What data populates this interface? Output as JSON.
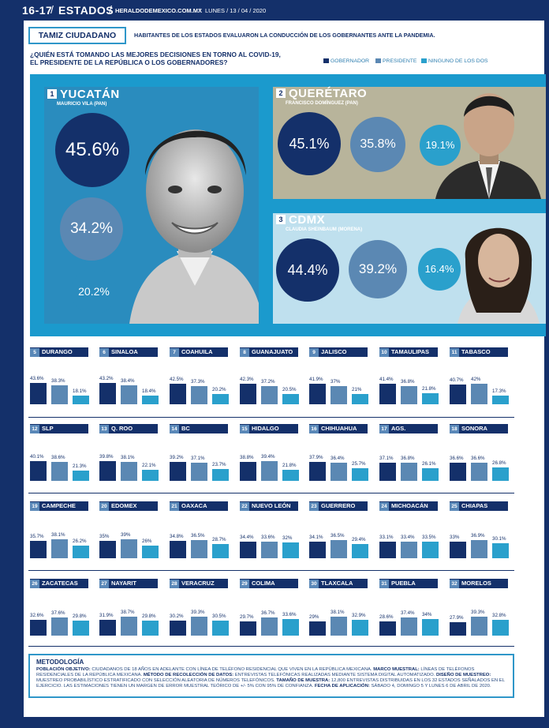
{
  "header": {
    "pages": "16-17",
    "section": "ESTADOS",
    "site": "HERALDODEMEXICO.COM.MX",
    "date": "LUNES / 13 / 04 / 2020"
  },
  "tamiz": {
    "label": "TAMIZ CIUDADANO",
    "subtitle": "HABITANTES DE LOS ESTADOS EVALUARON LA CONDUCCIÓN DE LOS GOBERNANTES ANTE LA PANDEMIA."
  },
  "question": {
    "line1": "¿QUIÉN ESTÁ TOMANDO LAS MEJORES DECISIONES EN TORNO AL COVID-19,",
    "line2": "EL PRESIDENTE DE LA REPÚBLICA O LOS GOBERNADORES?"
  },
  "legend": {
    "gobernador": "GOBERNADOR",
    "presidente": "PRESIDENTE",
    "ninguno": "NINGUNO DE LOS DOS"
  },
  "colors": {
    "gobernador": "#14306a",
    "presidente": "#5b88b3",
    "ninguno": "#2aa0cc",
    "band": "#1b9acd"
  },
  "featured": [
    {
      "rank": "1",
      "state": "YUCATÁN",
      "governor": "MAURICIO VILA (PAN)",
      "values": [
        "45.6%",
        "34.2%",
        "20.2%"
      ]
    },
    {
      "rank": "2",
      "state": "QUERÉTARO",
      "governor": "FRANCISCO DOMÍNGUEZ (PAN)",
      "values": [
        "45.1%",
        "35.8%",
        "19.1%"
      ]
    },
    {
      "rank": "3",
      "state": "CDMX",
      "governor": "CLAUDIA SHEINBAUM (MORENA)",
      "values": [
        "44.4%",
        "39.2%",
        "16.4%"
      ]
    }
  ],
  "states": [
    {
      "rank": "5",
      "name": "DURANGO",
      "labels": [
        "43.6%",
        "38.3%",
        "18.1%"
      ],
      "values": [
        43.6,
        38.3,
        18.1
      ]
    },
    {
      "rank": "6",
      "name": "SINALOA",
      "labels": [
        "43.2%",
        "38.4%",
        "18.4%"
      ],
      "values": [
        43.2,
        38.4,
        18.4
      ]
    },
    {
      "rank": "7",
      "name": "COAHUILA",
      "labels": [
        "42.5%",
        "37.3%",
        "20.2%"
      ],
      "values": [
        42.5,
        37.3,
        20.2
      ]
    },
    {
      "rank": "8",
      "name": "GUANAJUATO",
      "labels": [
        "42.3%",
        "37.2%",
        "20.5%"
      ],
      "values": [
        42.3,
        37.2,
        20.5
      ]
    },
    {
      "rank": "9",
      "name": "JALISCO",
      "labels": [
        "41.9%",
        "37%",
        "21%"
      ],
      "values": [
        41.9,
        37,
        21
      ]
    },
    {
      "rank": "10",
      "name": "TAMAULIPAS",
      "labels": [
        "41.4%",
        "36.8%",
        "21.8%"
      ],
      "values": [
        41.4,
        36.8,
        21.8
      ]
    },
    {
      "rank": "11",
      "name": "TABASCO",
      "labels": [
        "40.7%",
        "42%",
        "17.3%"
      ],
      "values": [
        40.7,
        42,
        17.3
      ]
    },
    {
      "rank": "12",
      "name": "SLP",
      "labels": [
        "40.1%",
        "38.6%",
        "21.3%"
      ],
      "values": [
        40.1,
        38.6,
        21.3
      ]
    },
    {
      "rank": "13",
      "name": "Q. ROO",
      "labels": [
        "39.8%",
        "38.1%",
        "22.1%"
      ],
      "values": [
        39.8,
        38.1,
        22.1
      ]
    },
    {
      "rank": "14",
      "name": "BC",
      "labels": [
        "39.2%",
        "37.1%",
        "23.7%"
      ],
      "values": [
        39.2,
        37.1,
        23.7
      ]
    },
    {
      "rank": "15",
      "name": "HIDALGO",
      "labels": [
        "38.8%",
        "39.4%",
        "21.8%"
      ],
      "values": [
        38.8,
        39.4,
        21.8
      ]
    },
    {
      "rank": "16",
      "name": "CHIHUAHUA",
      "labels": [
        "37.9%",
        "36.4%",
        "25.7%"
      ],
      "values": [
        37.9,
        36.4,
        25.7
      ]
    },
    {
      "rank": "17",
      "name": "AGS.",
      "labels": [
        "37.1%",
        "36.8%",
        "26.1%"
      ],
      "values": [
        37.1,
        36.8,
        26.1
      ]
    },
    {
      "rank": "18",
      "name": "SONORA",
      "labels": [
        "36.6%",
        "36.6%",
        "26.8%"
      ],
      "values": [
        36.6,
        36.6,
        26.8
      ]
    },
    {
      "rank": "19",
      "name": "CAMPECHE",
      "labels": [
        "35.7%",
        "38.1%",
        "26.2%"
      ],
      "values": [
        35.7,
        38.1,
        26.2
      ]
    },
    {
      "rank": "20",
      "name": "EDOMEX",
      "labels": [
        "35%",
        "39%",
        "26%"
      ],
      "values": [
        35,
        39,
        26
      ]
    },
    {
      "rank": "21",
      "name": "OAXACA",
      "labels": [
        "34.8%",
        "36.5%",
        "28.7%"
      ],
      "values": [
        34.8,
        36.5,
        28.7
      ]
    },
    {
      "rank": "22",
      "name": "NUEVO LEÓN",
      "labels": [
        "34.4%",
        "33.6%",
        "32%"
      ],
      "values": [
        34.4,
        33.6,
        32
      ]
    },
    {
      "rank": "23",
      "name": "GUERRERO",
      "labels": [
        "34.1%",
        "36.5%",
        "29.4%"
      ],
      "values": [
        34.1,
        36.5,
        29.4
      ]
    },
    {
      "rank": "24",
      "name": "MICHOACÁN",
      "labels": [
        "33.1%",
        "33.4%",
        "33.5%"
      ],
      "values": [
        33.1,
        33.4,
        33.5
      ]
    },
    {
      "rank": "25",
      "name": "CHIAPAS",
      "labels": [
        "33%",
        "36.9%",
        "30.1%"
      ],
      "values": [
        33,
        36.9,
        30.1
      ]
    },
    {
      "rank": "26",
      "name": "ZACATECAS",
      "labels": [
        "32.6%",
        "37.6%",
        "29.8%"
      ],
      "values": [
        32.6,
        37.6,
        29.8
      ]
    },
    {
      "rank": "27",
      "name": "NAYARIT",
      "labels": [
        "31.9%",
        "38.7%",
        "29.8%"
      ],
      "values": [
        31.9,
        38.7,
        29.8
      ]
    },
    {
      "rank": "28",
      "name": "VERACRUZ",
      "labels": [
        "30.2%",
        "39.3%",
        "30.5%"
      ],
      "values": [
        30.2,
        39.3,
        30.5
      ]
    },
    {
      "rank": "29",
      "name": "COLIMA",
      "labels": [
        "29.7%",
        "36.7%",
        "33.6%"
      ],
      "values": [
        29.7,
        36.7,
        33.6
      ]
    },
    {
      "rank": "30",
      "name": "TLAXCALA",
      "labels": [
        "29%",
        "38.1%",
        "32.9%"
      ],
      "values": [
        29,
        38.1,
        32.9
      ]
    },
    {
      "rank": "31",
      "name": "PUEBLA",
      "labels": [
        "28.6%",
        "37.4%",
        "34%"
      ],
      "values": [
        28.6,
        37.4,
        34
      ]
    },
    {
      "rank": "32",
      "name": "MORELOS",
      "labels": [
        "27.9%",
        "39.3%",
        "32.8%"
      ],
      "values": [
        27.9,
        39.3,
        32.8
      ]
    }
  ],
  "methodology": {
    "title": "METODOLOGÍA",
    "p1_label": "POBLACIÓN OBJETIVO:",
    "p1": " CIUDADANOS DE 18 AÑOS EN ADELANTE CON LÍNEA DE TELÉFONO RESIDENCIAL QUE VIVEN EN LA REPÚBLICA MEXICANA. ",
    "p2_label": "MARCO MUESTRAL:",
    "p2": " LÍNEAS DE TELÉFONOS RESIDENCIALES DE LA REPÚBLICA MEXICANA. ",
    "p3_label": "MÉTODO DE RECOLECCIÓN DE DATOS:",
    "p3": " ENTREVISTAS TELEFÓNICAS REALIZADAS MEDIANTE SISTEMA DIGITAL AUTOMATIZADO. ",
    "p4_label": "DISEÑO DE MUESTREO:",
    "p4": " MUESTREO PROBABILÍSTICO ESTRATIFICADO CON SELECCIÓN ALEATORIA DE NÚMEROS TELEFÓNICOS. ",
    "p5_label": "TAMAÑO DE MUESTRA:",
    "p5": " 12,800 ENTREVISTAS DISTRIBUIDAS EN LOS 32 ESTADOS SEÑALADOS EN EL EJERCICIO. LAS ESTIMACIONES TIENEN UN MARGEN DE ERROR MUESTRAL TEÓRICO DE +/- 5% CON 95% DE CONFIANZA. ",
    "p6_label": "FECHA DE APLICACIÓN:",
    "p6": " SÁBADO 4, DOMINGO 5 Y LUNES 6 DE ABRIL DE 2020."
  }
}
